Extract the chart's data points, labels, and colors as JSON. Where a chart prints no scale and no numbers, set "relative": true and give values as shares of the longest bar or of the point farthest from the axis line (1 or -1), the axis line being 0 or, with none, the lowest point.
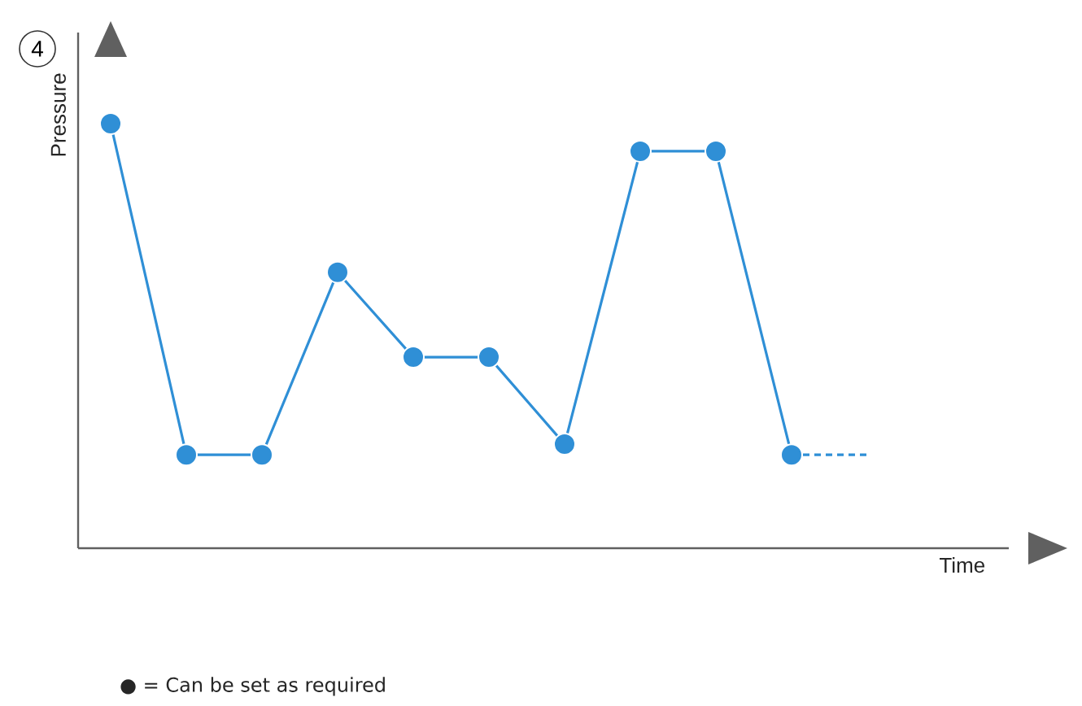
{
  "chart_data": {
    "type": "line",
    "relative": true,
    "xlabel": "Time",
    "ylabel": "Pressure",
    "categories": [
      null,
      null,
      null,
      null,
      null,
      null,
      null,
      null,
      null,
      null,
      null
    ],
    "series": [
      {
        "color": "#2f8fd6",
        "values": [
          1,
          0.22,
          0.22,
          0.65,
          0.45,
          0.45,
          0.245,
          0.935,
          0.935,
          0.22,
          null
        ],
        "marker": "circle",
        "line_style": "solid"
      },
      {
        "color": "#2f8fd6",
        "values": [
          null,
          null,
          null,
          null,
          null,
          null,
          null,
          null,
          null,
          0.22,
          0.22
        ],
        "marker": "none",
        "line_style": "dashed"
      }
    ],
    "tick_labels": false,
    "annotations": [
      "4",
      "● = Can be set as required"
    ]
  }
}
